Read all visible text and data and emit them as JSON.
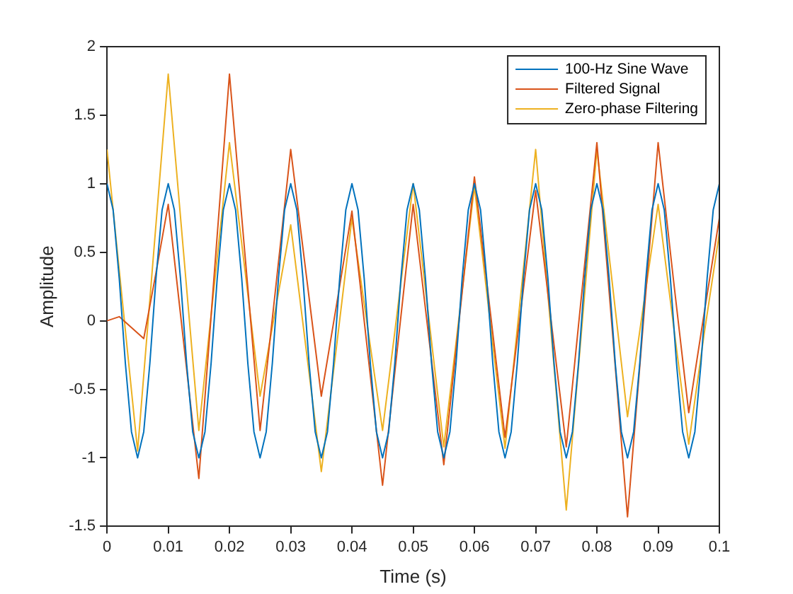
{
  "chart_data": {
    "type": "line",
    "xlabel": "Time (s)",
    "ylabel": "Amplitude",
    "x": [
      0,
      0.001,
      0.002,
      0.003,
      0.004,
      0.005,
      0.006,
      0.007,
      0.008,
      0.009,
      0.01,
      0.011,
      0.012,
      0.013,
      0.014,
      0.015,
      0.016,
      0.017,
      0.018,
      0.019,
      0.02,
      0.021,
      0.022,
      0.023,
      0.024,
      0.025,
      0.026,
      0.027,
      0.028,
      0.029,
      0.03,
      0.031,
      0.032,
      0.033,
      0.034,
      0.035,
      0.036,
      0.037,
      0.038,
      0.039,
      0.04,
      0.041,
      0.042,
      0.043,
      0.044,
      0.045,
      0.046,
      0.047,
      0.048,
      0.049,
      0.05,
      0.051,
      0.052,
      0.053,
      0.054,
      0.055,
      0.056,
      0.057,
      0.058,
      0.059,
      0.06,
      0.061,
      0.062,
      0.063,
      0.064,
      0.065,
      0.066,
      0.067,
      0.068,
      0.069,
      0.07,
      0.071,
      0.072,
      0.073,
      0.074,
      0.075,
      0.076,
      0.077,
      0.078,
      0.079,
      0.08,
      0.081,
      0.082,
      0.083,
      0.084,
      0.085,
      0.086,
      0.087,
      0.088,
      0.089,
      0.09,
      0.091,
      0.092,
      0.093,
      0.094,
      0.095,
      0.096,
      0.097,
      0.098,
      0.099,
      0.1
    ],
    "series": [
      {
        "name": "100-Hz Sine Wave",
        "color": "#0072bd",
        "values": [
          1,
          0.81,
          0.31,
          -0.31,
          -0.81,
          -1,
          -0.81,
          -0.31,
          0.31,
          0.81,
          1,
          0.81,
          0.31,
          -0.31,
          -0.81,
          -1,
          -0.81,
          -0.31,
          0.31,
          0.81,
          1,
          0.81,
          0.31,
          -0.31,
          -0.81,
          -1,
          -0.81,
          -0.31,
          0.31,
          0.81,
          1,
          0.81,
          0.31,
          -0.31,
          -0.81,
          -1,
          -0.81,
          -0.31,
          0.31,
          0.81,
          1,
          0.81,
          0.31,
          -0.31,
          -0.81,
          -1,
          -0.81,
          -0.31,
          0.31,
          0.81,
          1,
          0.81,
          0.31,
          -0.31,
          -0.81,
          -1,
          -0.81,
          -0.31,
          0.31,
          0.81,
          1,
          0.81,
          0.31,
          -0.31,
          -0.81,
          -1,
          -0.81,
          -0.31,
          0.31,
          0.81,
          1,
          0.81,
          0.31,
          -0.31,
          -0.81,
          -1,
          -0.81,
          -0.31,
          0.31,
          0.81,
          1,
          0.81,
          0.31,
          -0.31,
          -0.81,
          -1,
          -0.81,
          -0.31,
          0.31,
          0.81,
          1,
          0.81,
          0.31,
          -0.31,
          -0.81,
          -1,
          -0.81,
          -0.31,
          0.31,
          0.81,
          1
        ]
      },
      {
        "name": "Filtered Signal",
        "color": "#d95319",
        "x": [
          0,
          0.002,
          0.004,
          0.006,
          0.008,
          0.01,
          0.0125,
          0.015,
          0.0175,
          0.02,
          0.0225,
          0.025,
          0.0275,
          0.03,
          0.0325,
          0.035,
          0.0375,
          0.04,
          0.0425,
          0.045,
          0.0475,
          0.05,
          0.0525,
          0.055,
          0.0575,
          0.06,
          0.0625,
          0.065,
          0.0675,
          0.07,
          0.0725,
          0.075,
          0.0775,
          0.08,
          0.0825,
          0.085,
          0.0875,
          0.09,
          0.0925,
          0.095,
          0.0975,
          0.1
        ],
        "values": [
          0,
          0.03,
          -0.05,
          -0.13,
          0.35,
          0.85,
          -0.15,
          -1.15,
          0.33,
          1.8,
          0.5,
          -0.8,
          0.22,
          1.25,
          0.35,
          -0.55,
          0.12,
          0.8,
          -0.2,
          -1.2,
          -0.17,
          0.85,
          -0.1,
          -1.05,
          0,
          1.05,
          0.1,
          -0.85,
          0.05,
          0.95,
          0.01,
          -0.92,
          0.19,
          1.3,
          -0.06,
          -1.43,
          -0.06,
          1.3,
          0.3,
          -0.67,
          0.05,
          0.75
        ]
      },
      {
        "name": "Zero-phase Filtering",
        "color": "#edb120",
        "x": [
          0,
          0.0025,
          0.005,
          0.0075,
          0.01,
          0.0125,
          0.015,
          0.0175,
          0.02,
          0.0225,
          0.025,
          0.0275,
          0.03,
          0.0325,
          0.035,
          0.0375,
          0.04,
          0.0425,
          0.045,
          0.0475,
          0.05,
          0.0525,
          0.055,
          0.0575,
          0.06,
          0.0625,
          0.065,
          0.0675,
          0.07,
          0.0725,
          0.075,
          0.0775,
          0.08,
          0.0825,
          0.085,
          0.0875,
          0.09,
          0.0925,
          0.095,
          0.0975,
          0.1
        ],
        "values": [
          1.25,
          0.15,
          -0.95,
          0.43,
          1.8,
          0.5,
          -0.8,
          0.25,
          1.3,
          0.38,
          -0.55,
          0.08,
          0.7,
          -0.2,
          -1.1,
          -0.18,
          0.75,
          -0.03,
          -0.8,
          0.1,
          1.0,
          0.04,
          -0.92,
          0.03,
          0.98,
          0.02,
          -0.93,
          0.16,
          1.25,
          -0.07,
          -1.38,
          -0.07,
          1.25,
          0.28,
          -0.7,
          0.08,
          0.85,
          -0.03,
          -0.9,
          -0.1,
          0.64
        ]
      }
    ],
    "xlim": [
      0,
      0.1
    ],
    "xticks": [
      0,
      0.01,
      0.02,
      0.03,
      0.04,
      0.05,
      0.06,
      0.07,
      0.08,
      0.09,
      0.1
    ],
    "ylim": [
      -1.5,
      2
    ],
    "yticks": [
      -1.5,
      -1,
      -0.5,
      0,
      0.5,
      1,
      1.5,
      2
    ],
    "grid": false,
    "legend": "top right",
    "marker": "none",
    "line_style": "solid"
  }
}
